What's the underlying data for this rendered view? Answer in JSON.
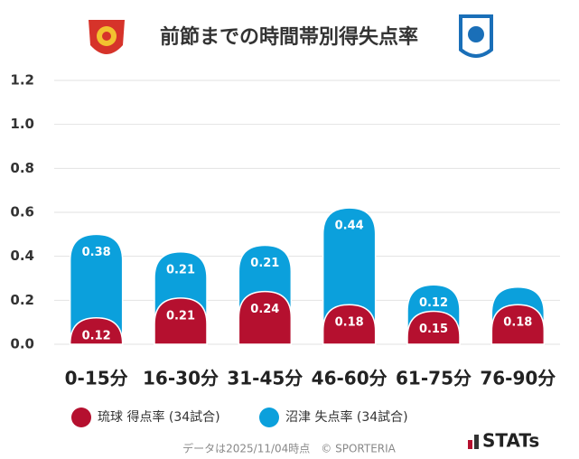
{
  "chart_data": {
    "type": "stacked_bar",
    "title": "前節までの時間帯別得失点率",
    "categories": [
      "0-15分",
      "16-30分",
      "31-45分",
      "46-60分",
      "61-75分",
      "76-90分"
    ],
    "series": [
      {
        "name": "琉球 得点率 (34試合)",
        "color": "#b5102f",
        "values": [
          0.12,
          0.21,
          0.24,
          0.18,
          0.15,
          0.18
        ]
      },
      {
        "name": "沼津 失点率 (34試合)",
        "color": "#0ba0dc",
        "values": [
          0.38,
          0.21,
          0.21,
          0.44,
          0.12,
          0.08
        ],
        "value_labels": [
          "0.38",
          "0.21",
          "0.21",
          "0.44",
          "0.12",
          null
        ]
      }
    ],
    "ylim": [
      0,
      1.2
    ],
    "yticks": [
      {
        "value": 0,
        "label": "0.0"
      },
      0.2,
      0.4,
      0.6,
      0.8,
      {
        "value": 1,
        "label": "1.0"
      },
      1.2
    ],
    "grid": true,
    "footnote": "データは2025/11/04時点　© SPORTERIA",
    "brand": "STATs"
  }
}
